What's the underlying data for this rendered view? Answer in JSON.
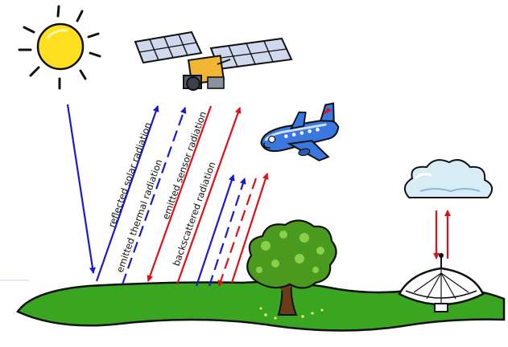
{
  "labels": {
    "reflected": "reflected solar radiation",
    "thermal": "emitted thermal radiation",
    "sensor": "emitted sensor radiation",
    "backscattered": "backscattered radiation"
  },
  "colors": {
    "solar_blue": "#1a1acc",
    "sensor_red": "#e0101a",
    "ground_green": "#3aa520",
    "sun_yellow": "#ffe020",
    "tree_green": "#4a9a20",
    "trunk_brown": "#6b3c18",
    "cloud_blue": "#d8ecf6",
    "plane_blue": "#3a78e0"
  },
  "icons": [
    "sun-icon",
    "satellite-icon",
    "airplane-icon",
    "tree-icon",
    "cloud-icon",
    "radar-dish-icon"
  ]
}
